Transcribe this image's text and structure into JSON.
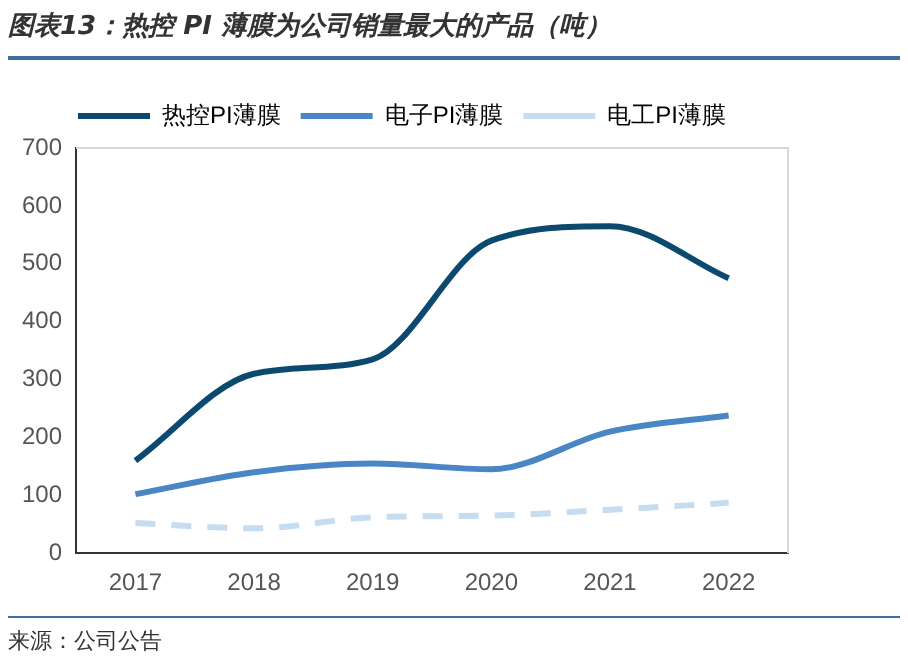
{
  "chart_data": {
    "type": "line",
    "title": "图表13：热控 PI 薄膜为公司销量最大的产品（吨）",
    "categories": [
      "2017",
      "2018",
      "2019",
      "2020",
      "2021",
      "2022"
    ],
    "series": [
      {
        "name": "热控PI薄膜",
        "color": "#0b4a6e",
        "values": [
          160,
          310,
          335,
          540,
          565,
          475
        ],
        "line_style": "solid"
      },
      {
        "name": "电子PI薄膜",
        "color": "#4a86c5",
        "values": [
          102,
          140,
          155,
          145,
          210,
          238
        ],
        "line_style": "solid"
      },
      {
        "name": "电工PI薄膜",
        "color": "#c6dcf0",
        "values": [
          52,
          43,
          62,
          65,
          75,
          87
        ],
        "line_style": "dashed"
      }
    ],
    "ylim": [
      0,
      700
    ],
    "yticks": [
      0,
      100,
      200,
      300,
      400,
      500,
      600,
      700
    ],
    "grid": false,
    "legend": "top",
    "marker": "none",
    "annotations": [
      "来源：公司公告"
    ]
  }
}
